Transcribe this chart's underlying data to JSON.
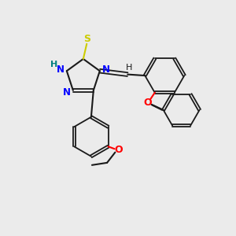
{
  "background_color": "#ebebeb",
  "bond_color": "#1a1a1a",
  "n_color": "#0000ff",
  "s_color": "#cccc00",
  "o_color": "#ff0000",
  "h_color": "#008080",
  "c_color": "#1a1a1a",
  "figsize": [
    3.0,
    3.0
  ],
  "dpi": 100,
  "xlim": [
    0,
    10
  ],
  "ylim": [
    0,
    10
  ]
}
